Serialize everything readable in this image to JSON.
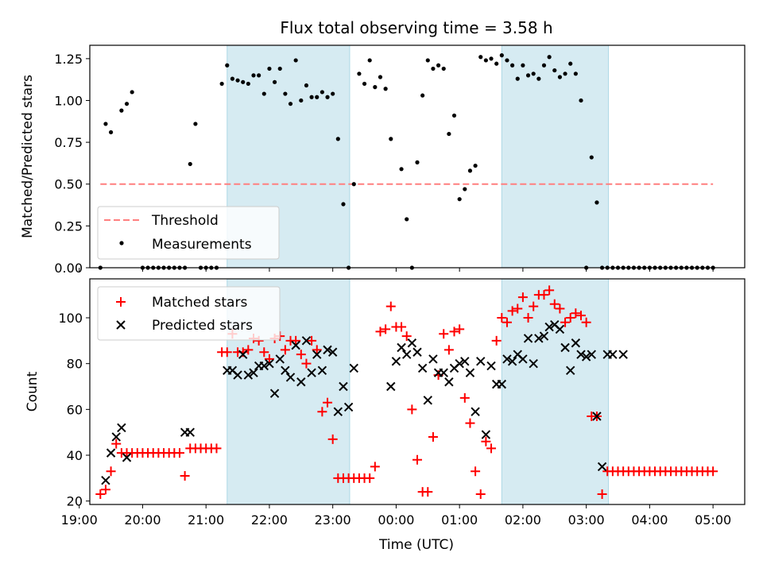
{
  "chart_data": [
    {
      "type": "scatter",
      "title": "Flux total observing time = 3.58 h",
      "ylabel": "Matched/Predicted stars",
      "xlabel": "",
      "xlim": [
        "19:10",
        "05:30"
      ],
      "ylim": [
        0.0,
        1.33
      ],
      "yticks": [
        "0.00",
        "0.25",
        "0.50",
        "0.75",
        "1.00",
        "1.25"
      ],
      "xticks": [
        "19:00",
        "20:00",
        "21:00",
        "22:00",
        "23:00",
        "00:00",
        "01:00",
        "02:00",
        "03:00",
        "04:00",
        "05:00"
      ],
      "grid": false,
      "legend": "lower-left",
      "shaded_intervals": [
        [
          "21:20",
          "23:16"
        ],
        [
          "01:40",
          "03:21"
        ]
      ],
      "threshold": {
        "name": "Threshold",
        "value": 0.5,
        "x_range": [
          "19:20",
          "05:00"
        ],
        "color": "#ff7f7f"
      },
      "series": [
        {
          "name": "Measurements",
          "color": "#000000",
          "x": [
            "19:20",
            "19:25",
            "19:30",
            "19:40",
            "19:45",
            "19:50",
            "20:00",
            "20:05",
            "20:10",
            "20:15",
            "20:20",
            "20:25",
            "20:30",
            "20:35",
            "20:40",
            "20:45",
            "20:50",
            "20:55",
            "21:00",
            "21:05",
            "21:10",
            "21:15",
            "21:20",
            "21:25",
            "21:30",
            "21:35",
            "21:40",
            "21:45",
            "21:50",
            "21:55",
            "22:00",
            "22:05",
            "22:10",
            "22:15",
            "22:20",
            "22:25",
            "22:30",
            "22:35",
            "22:40",
            "22:45",
            "22:50",
            "22:55",
            "23:00",
            "23:05",
            "23:10",
            "23:15",
            "23:20",
            "23:25",
            "23:30",
            "23:35",
            "23:40",
            "23:45",
            "23:50",
            "23:55",
            "00:05",
            "00:10",
            "00:15",
            "00:20",
            "00:25",
            "00:30",
            "00:35",
            "00:40",
            "00:45",
            "00:50",
            "00:55",
            "01:00",
            "01:05",
            "01:10",
            "01:15",
            "01:20",
            "01:25",
            "01:30",
            "01:35",
            "01:40",
            "01:45",
            "01:50",
            "01:55",
            "02:00",
            "02:05",
            "02:10",
            "02:15",
            "02:20",
            "02:25",
            "02:30",
            "02:35",
            "02:40",
            "02:45",
            "02:50",
            "02:55",
            "03:00",
            "03:05",
            "03:10",
            "03:15",
            "03:20",
            "03:25",
            "03:30",
            "03:35",
            "03:40",
            "03:45",
            "03:50",
            "03:55",
            "04:00",
            "04:05",
            "04:10",
            "04:15",
            "04:20",
            "04:25",
            "04:30",
            "04:35",
            "04:40",
            "04:45",
            "04:50",
            "04:55",
            "05:00"
          ],
          "y": [
            0.0,
            0.86,
            0.81,
            0.94,
            0.98,
            1.05,
            0.0,
            0.0,
            0.0,
            0.0,
            0.0,
            0.0,
            0.0,
            0.0,
            0.0,
            0.62,
            0.86,
            0.0,
            0.0,
            0.0,
            0.0,
            1.1,
            1.21,
            1.13,
            1.12,
            1.11,
            1.1,
            1.15,
            1.15,
            1.04,
            1.19,
            1.11,
            1.19,
            1.04,
            0.98,
            1.24,
            1.0,
            1.09,
            1.02,
            1.02,
            1.05,
            1.02,
            1.04,
            0.77,
            0.38,
            0.0,
            0.5,
            1.16,
            1.1,
            1.24,
            1.08,
            1.14,
            1.07,
            0.77,
            0.59,
            0.29,
            0.0,
            0.63,
            1.03,
            1.24,
            1.19,
            1.21,
            1.19,
            0.8,
            0.91,
            0.41,
            0.47,
            0.58,
            0.61,
            1.26,
            1.24,
            1.25,
            1.22,
            1.27,
            1.24,
            1.21,
            1.13,
            1.21,
            1.15,
            1.16,
            1.13,
            1.21,
            1.26,
            1.18,
            1.14,
            1.16,
            1.22,
            1.16,
            1.0,
            0.0,
            0.66,
            0.39,
            0.0,
            0.0,
            0.0,
            0.0,
            0.0,
            0.0,
            0.0,
            0.0,
            0.0,
            0.0,
            0.0,
            0.0,
            0.0,
            0.0,
            0.0,
            0.0,
            0.0,
            0.0,
            0.0,
            0.0,
            0.0,
            0.0
          ]
        }
      ]
    },
    {
      "type": "scatter",
      "title": "",
      "ylabel": "Count",
      "xlabel": "Time (UTC)",
      "xlim": [
        "19:10",
        "05:30"
      ],
      "ylim": [
        18.5,
        117
      ],
      "yticks": [
        "20",
        "40",
        "60",
        "80",
        "100"
      ],
      "xticks": [
        "19:00",
        "20:00",
        "21:00",
        "22:00",
        "23:00",
        "00:00",
        "01:00",
        "02:00",
        "03:00",
        "04:00",
        "05:00"
      ],
      "grid": false,
      "legend": "top-left",
      "shaded_intervals": [
        [
          "21:20",
          "23:16"
        ],
        [
          "01:40",
          "03:21"
        ]
      ],
      "series": [
        {
          "name": "Matched stars",
          "marker": "+",
          "color": "#ff0000",
          "x": [
            "19:20",
            "19:25",
            "19:30",
            "19:35",
            "19:40",
            "19:45",
            "19:50",
            "19:55",
            "20:00",
            "20:05",
            "20:10",
            "20:15",
            "20:20",
            "20:25",
            "20:30",
            "20:35",
            "20:40",
            "20:45",
            "20:50",
            "20:55",
            "21:00",
            "21:05",
            "21:10",
            "21:15",
            "21:20",
            "21:25",
            "21:30",
            "21:35",
            "21:40",
            "21:45",
            "21:50",
            "21:55",
            "22:00",
            "22:05",
            "22:10",
            "22:15",
            "22:20",
            "22:25",
            "22:30",
            "22:35",
            "22:40",
            "22:45",
            "22:50",
            "22:55",
            "23:00",
            "23:05",
            "23:10",
            "23:15",
            "23:20",
            "23:25",
            "23:30",
            "23:35",
            "23:40",
            "23:45",
            "23:50",
            "23:55",
            "00:00",
            "00:05",
            "00:10",
            "00:15",
            "00:20",
            "00:25",
            "00:30",
            "00:35",
            "00:40",
            "00:45",
            "00:50",
            "00:55",
            "01:00",
            "01:05",
            "01:10",
            "01:15",
            "01:20",
            "01:25",
            "01:30",
            "01:35",
            "01:40",
            "01:45",
            "01:50",
            "01:55",
            "02:00",
            "02:05",
            "02:10",
            "02:15",
            "02:20",
            "02:25",
            "02:30",
            "02:35",
            "02:40",
            "02:45",
            "02:50",
            "02:55",
            "03:00",
            "03:05",
            "03:10",
            "03:15",
            "03:20",
            "03:25",
            "03:30",
            "03:35",
            "03:40",
            "03:45",
            "03:50",
            "03:55",
            "04:00",
            "04:05",
            "04:10",
            "04:15",
            "04:20",
            "04:25",
            "04:30",
            "04:35",
            "04:40",
            "04:45",
            "04:50",
            "04:55",
            "05:00"
          ],
          "y": [
            23,
            25,
            33,
            45,
            41,
            41,
            41,
            41,
            41,
            41,
            41,
            41,
            41,
            41,
            41,
            41,
            31,
            43,
            43,
            43,
            43,
            43,
            43,
            85,
            85,
            93,
            85,
            85,
            86,
            91,
            90,
            85,
            82,
            91,
            92,
            86,
            90,
            90,
            84,
            80,
            90,
            86,
            59,
            63,
            47,
            30,
            30,
            30,
            30,
            30,
            30,
            30,
            35,
            94,
            95,
            105,
            96,
            96,
            92,
            60,
            38,
            24,
            24,
            48,
            75,
            93,
            86,
            94,
            95,
            65,
            54,
            33,
            23,
            46,
            43,
            90,
            100,
            98,
            103,
            104,
            109,
            100,
            105,
            110,
            110,
            112,
            106,
            104,
            98,
            100,
            102,
            101,
            98,
            57,
            57,
            23,
            33,
            33,
            33,
            33,
            33,
            33,
            33,
            33,
            33,
            33,
            33,
            33,
            33,
            33,
            33,
            33,
            33,
            33,
            33,
            33,
            33
          ]
        },
        {
          "name": "Predicted stars",
          "marker": "x",
          "color": "#000000",
          "x": [
            "19:25",
            "19:30",
            "19:35",
            "19:40",
            "19:45",
            "20:40",
            "20:45",
            "21:20",
            "21:25",
            "21:30",
            "21:35",
            "21:40",
            "21:45",
            "21:50",
            "21:55",
            "22:00",
            "22:05",
            "22:10",
            "22:15",
            "22:20",
            "22:25",
            "22:30",
            "22:35",
            "22:40",
            "22:45",
            "22:50",
            "22:55",
            "23:00",
            "23:05",
            "23:10",
            "23:15",
            "23:20",
            "23:55",
            "00:00",
            "00:05",
            "00:10",
            "00:15",
            "00:20",
            "00:25",
            "00:30",
            "00:35",
            "00:40",
            "00:45",
            "00:50",
            "00:55",
            "01:00",
            "01:05",
            "01:10",
            "01:15",
            "01:20",
            "01:25",
            "01:30",
            "01:35",
            "01:40",
            "01:45",
            "01:50",
            "01:55",
            "02:00",
            "02:05",
            "02:10",
            "02:15",
            "02:20",
            "02:25",
            "02:30",
            "02:35",
            "02:40",
            "02:45",
            "02:50",
            "02:55",
            "03:00",
            "03:05",
            "03:10",
            "03:15",
            "03:20",
            "03:25",
            "03:35"
          ],
          "y": [
            29,
            41,
            48,
            52,
            39,
            50,
            50,
            77,
            77,
            75,
            84,
            75,
            76,
            79,
            79,
            80,
            67,
            82,
            77,
            74,
            88,
            72,
            90,
            76,
            84,
            77,
            86,
            85,
            59,
            70,
            61,
            78,
            70,
            81,
            87,
            84,
            89,
            85,
            78,
            64,
            82,
            76,
            76,
            72,
            78,
            80,
            81,
            76,
            59,
            81,
            49,
            79,
            71,
            71,
            82,
            81,
            84,
            82,
            91,
            80,
            91,
            92,
            96,
            97,
            95,
            87,
            77,
            89,
            84,
            83,
            84,
            57,
            35,
            84,
            84,
            84
          ]
        }
      ]
    }
  ]
}
